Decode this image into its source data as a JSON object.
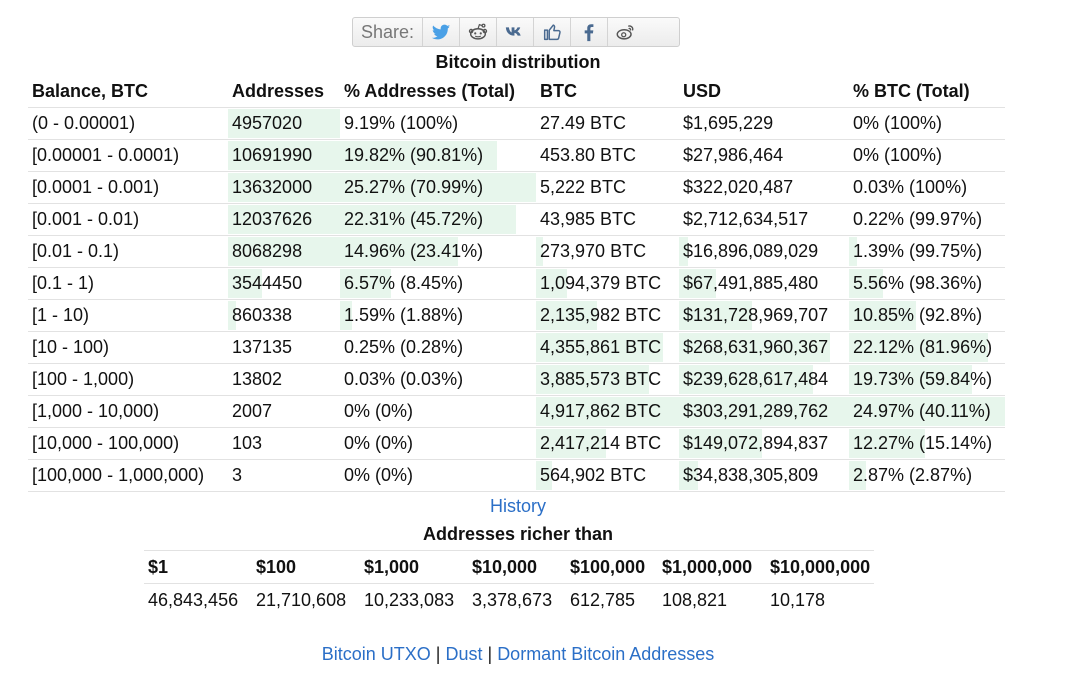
{
  "share": {
    "label": "Share:"
  },
  "distribution": {
    "title": "Bitcoin distribution",
    "headers": [
      "Balance, BTC",
      "Addresses",
      "% Addresses (Total)",
      "BTC",
      "USD",
      "% BTC (Total)"
    ],
    "rows": [
      {
        "balance": "(0 - 0.00001)",
        "addresses": "4957020",
        "pct_addr": "9.19% (100%)",
        "btc": "27.49 BTC",
        "usd": "$1,695,229",
        "pct_btc": "0% (100%)",
        "addr_bar": 1.0,
        "pct_addr_bar": 0.0,
        "btc_bar": 0.0,
        "usd_bar": 0.0,
        "pct_btc_bar": 0.0
      },
      {
        "balance": "[0.00001 - 0.0001)",
        "addresses": "10691990",
        "pct_addr": "19.82% (90.81%)",
        "btc": "453.80 BTC",
        "usd": "$27,986,464",
        "pct_btc": "0% (100%)",
        "addr_bar": 1.0,
        "pct_addr_bar": 0.8,
        "btc_bar": 0.0,
        "usd_bar": 0.0,
        "pct_btc_bar": 0.0
      },
      {
        "balance": "[0.0001 - 0.001)",
        "addresses": "13632000",
        "pct_addr": "25.27% (70.99%)",
        "btc": "5,222 BTC",
        "usd": "$322,020,487",
        "pct_btc": "0.03% (100%)",
        "addr_bar": 1.0,
        "pct_addr_bar": 1.0,
        "btc_bar": 0.0,
        "usd_bar": 0.0,
        "pct_btc_bar": 0.0
      },
      {
        "balance": "[0.001 - 0.01)",
        "addresses": "12037626",
        "pct_addr": "22.31% (45.72%)",
        "btc": "43,985 BTC",
        "usd": "$2,712,634,517",
        "pct_btc": "0.22% (99.97%)",
        "addr_bar": 1.0,
        "pct_addr_bar": 0.9,
        "btc_bar": 0.0,
        "usd_bar": 0.0,
        "pct_btc_bar": 0.0
      },
      {
        "balance": "[0.01 - 0.1)",
        "addresses": "8068298",
        "pct_addr": "14.96% (23.41%)",
        "btc": "273,970 BTC",
        "usd": "$16,896,089,029",
        "pct_btc": "1.39% (99.75%)",
        "addr_bar": 1.0,
        "pct_addr_bar": 0.6,
        "btc_bar": 0.05,
        "usd_bar": 0.05,
        "pct_btc_bar": 0.05
      },
      {
        "balance": "[0.1 - 1)",
        "addresses": "3544450",
        "pct_addr": "6.57% (8.45%)",
        "btc": "1,094,379 BTC",
        "usd": "$67,491,885,480",
        "pct_btc": "5.56% (98.36%)",
        "addr_bar": 0.3,
        "pct_addr_bar": 0.26,
        "btc_bar": 0.22,
        "usd_bar": 0.22,
        "pct_btc_bar": 0.22
      },
      {
        "balance": "[1 - 10)",
        "addresses": "860338",
        "pct_addr": "1.59% (1.88%)",
        "btc": "2,135,982 BTC",
        "usd": "$131,728,969,707",
        "pct_btc": "10.85% (92.8%)",
        "addr_bar": 0.07,
        "pct_addr_bar": 0.06,
        "btc_bar": 0.43,
        "usd_bar": 0.43,
        "pct_btc_bar": 0.43
      },
      {
        "balance": "[10 - 100)",
        "addresses": "137135",
        "pct_addr": "0.25% (0.28%)",
        "btc": "4,355,861 BTC",
        "usd": "$268,631,960,367",
        "pct_btc": "22.12% (81.96%)",
        "addr_bar": 0.0,
        "pct_addr_bar": 0.0,
        "btc_bar": 0.89,
        "usd_bar": 0.89,
        "pct_btc_bar": 0.89
      },
      {
        "balance": "[100 - 1,000)",
        "addresses": "13802",
        "pct_addr": "0.03% (0.03%)",
        "btc": "3,885,573 BTC",
        "usd": "$239,628,617,484",
        "pct_btc": "19.73% (59.84%)",
        "addr_bar": 0.0,
        "pct_addr_bar": 0.0,
        "btc_bar": 0.79,
        "usd_bar": 0.79,
        "pct_btc_bar": 0.79
      },
      {
        "balance": "[1,000 - 10,000)",
        "addresses": "2007",
        "pct_addr": "0% (0%)",
        "btc": "4,917,862 BTC",
        "usd": "$303,291,289,762",
        "pct_btc": "24.97% (40.11%)",
        "addr_bar": 0.0,
        "pct_addr_bar": 0.0,
        "btc_bar": 1.0,
        "usd_bar": 1.0,
        "pct_btc_bar": 1.0
      },
      {
        "balance": "[10,000 - 100,000)",
        "addresses": "103",
        "pct_addr": "0% (0%)",
        "btc": "2,417,214 BTC",
        "usd": "$149,072,894,837",
        "pct_btc": "12.27% (15.14%)",
        "addr_bar": 0.0,
        "pct_addr_bar": 0.0,
        "btc_bar": 0.49,
        "usd_bar": 0.49,
        "pct_btc_bar": 0.49
      },
      {
        "balance": "[100,000 - 1,000,000)",
        "addresses": "3",
        "pct_addr": "0% (0%)",
        "btc": "564,902 BTC",
        "usd": "$34,838,305,809",
        "pct_btc": "2.87% (2.87%)",
        "addr_bar": 0.0,
        "pct_addr_bar": 0.0,
        "btc_bar": 0.11,
        "usd_bar": 0.11,
        "pct_btc_bar": 0.11
      }
    ]
  },
  "history_link": "History",
  "richer": {
    "title": "Addresses richer than",
    "headers": [
      "$1",
      "$100",
      "$1,000",
      "$10,000",
      "$100,000",
      "$1,000,000",
      "$10,000,000"
    ],
    "values": [
      "46,843,456",
      "21,710,608",
      "10,233,083",
      "3,378,673",
      "612,785",
      "108,821",
      "10,178"
    ]
  },
  "footer": {
    "links": [
      "Bitcoin UTXO",
      "Dust",
      "Dormant Bitcoin Addresses"
    ],
    "separator": "|"
  },
  "colors": {
    "link": "#2b6fc7",
    "bar": "#e7f6ec"
  }
}
